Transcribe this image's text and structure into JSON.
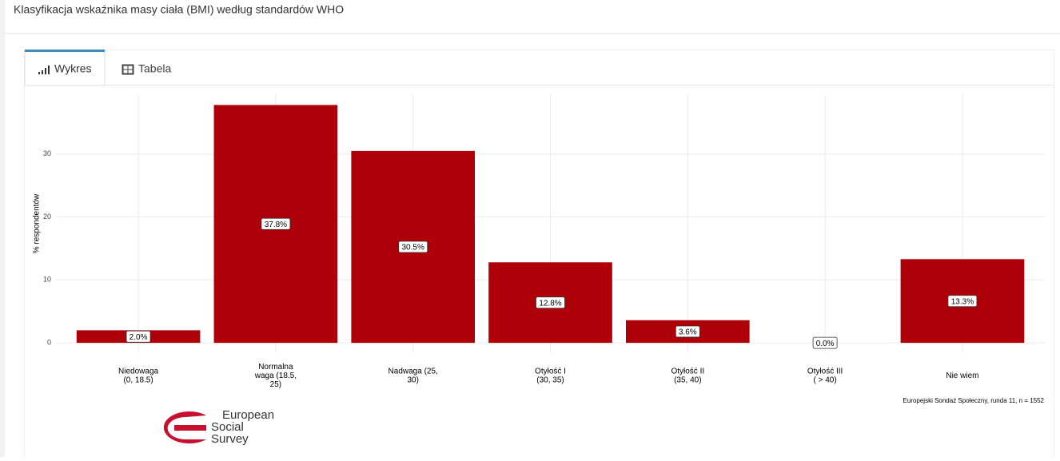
{
  "page": {
    "title": "Klasyfikacja wskaźnika masy ciała (BMI) według standardów WHO",
    "tabs": [
      "Wykres",
      "Tabela"
    ],
    "logo": [
      "European",
      "Social",
      "Survey"
    ]
  },
  "chart_data": {
    "type": "bar",
    "categories": [
      "Niedowaga\n(0, 18.5)",
      "Normalna\nwaga (18.5,\n25)",
      "Nadwaga (25,\n30)",
      "Otyłość I\n(30, 35)",
      "Otyłość II\n(35, 40)",
      "Otyłość III\n( > 40)",
      "Nie wiem"
    ],
    "values": [
      2.0,
      37.8,
      30.5,
      12.8,
      3.6,
      0.0,
      13.3
    ],
    "value_labels": [
      "2.0%",
      "37.8%",
      "30.5%",
      "12.8%",
      "3.6%",
      "0.0%",
      "13.3%"
    ],
    "color": "#ad0009",
    "y_label": "% respondentów",
    "caption": "Europejski Sondaż Społeczny, runda 11, n = 1552",
    "ylim": [
      -1,
      39.5
    ],
    "yticks": [
      0,
      10,
      20,
      30
    ],
    "grid": true
  }
}
